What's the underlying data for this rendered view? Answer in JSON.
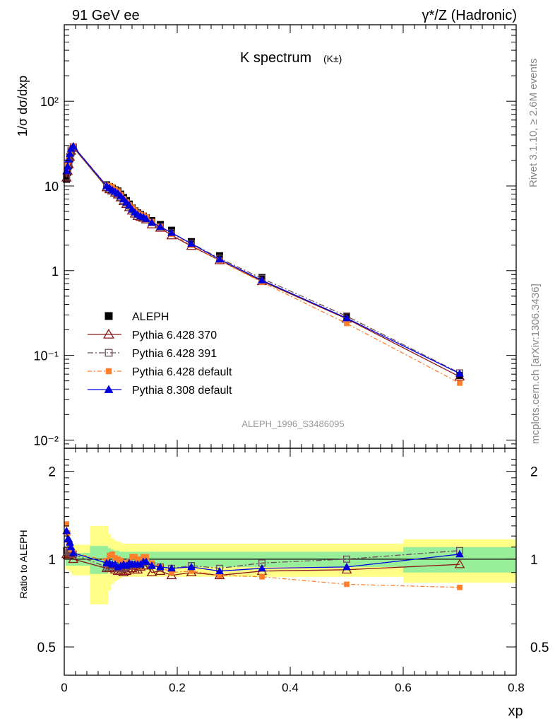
{
  "header": {
    "left": "91 GeV ee",
    "right": "γ*/Z (Hadronic)"
  },
  "side_text": {
    "rivet": "Rivet 3.1.10, ≥ 2.6M events",
    "mcplots": "mcplots.cern.ch [arXiv:1306.3436]"
  },
  "chart_data": [
    {
      "type": "line",
      "title": "K spectrum",
      "title_suffix": "(K±)",
      "analysis_label": "ALEPH_1996_S3486095",
      "ylabel": "1/σ dσ/dxp",
      "yscale": "log",
      "ylim": [
        0.008,
        800
      ],
      "xlim": [
        0,
        0.8
      ],
      "y_ticks": [
        "10⁻²",
        "10⁻¹",
        "1",
        "10",
        "10²"
      ],
      "legend_position": "lower-left",
      "x": [
        0.004,
        0.006,
        0.008,
        0.01,
        0.012,
        0.016,
        0.075,
        0.08,
        0.085,
        0.09,
        0.095,
        0.1,
        0.105,
        0.11,
        0.115,
        0.12,
        0.125,
        0.13,
        0.135,
        0.14,
        0.145,
        0.155,
        0.17,
        0.19,
        0.225,
        0.275,
        0.35,
        0.5,
        0.7
      ],
      "series": [
        {
          "name": "ALEPH",
          "color": "#000000",
          "marker": "filled-square",
          "values": [
            12.0,
            14.5,
            17.5,
            21.0,
            25.0,
            28.0,
            10.3,
            9.8,
            9.4,
            9.0,
            8.7,
            8.0,
            7.3,
            6.7,
            6.1,
            5.5,
            5.1,
            4.8,
            4.6,
            4.4,
            4.2,
            3.9,
            3.5,
            3.0,
            2.2,
            1.5,
            0.83,
            0.29,
            0.058
          ]
        },
        {
          "name": "Pythia 6.428 370",
          "color": "#8b1a1a",
          "marker": "open-triangle",
          "values": [
            12.5,
            15.0,
            18.0,
            22.0,
            26.0,
            28.5,
            9.6,
            9.1,
            8.8,
            8.3,
            7.9,
            7.3,
            6.6,
            6.1,
            5.6,
            5.1,
            4.7,
            4.4,
            4.3,
            4.2,
            4.0,
            3.5,
            3.2,
            2.6,
            1.95,
            1.32,
            0.75,
            0.27,
            0.056
          ]
        },
        {
          "name": "Pythia 6.428 391",
          "color": "#6e4d5a",
          "marker": "open-square",
          "values": [
            12.8,
            15.5,
            18.5,
            22.5,
            26.5,
            29.0,
            9.7,
            9.2,
            8.9,
            8.5,
            8.1,
            7.4,
            6.8,
            6.3,
            5.8,
            5.3,
            4.9,
            4.6,
            4.4,
            4.3,
            4.1,
            3.7,
            3.3,
            2.8,
            2.1,
            1.4,
            0.81,
            0.29,
            0.062
          ]
        },
        {
          "name": "Pythia 6.428 default",
          "color": "#ff7f2a",
          "marker": "filled-square-small",
          "values": [
            15.8,
            17.8,
            20.0,
            23.5,
            27.0,
            29.5,
            10.2,
            10.1,
            9.8,
            9.1,
            8.7,
            7.9,
            7.1,
            6.5,
            6.0,
            5.6,
            5.2,
            4.8,
            4.6,
            4.5,
            4.3,
            3.8,
            3.3,
            2.7,
            2.0,
            1.32,
            0.73,
            0.238,
            0.047
          ]
        },
        {
          "name": "Pythia 8.308 default",
          "color": "#0000dd",
          "marker": "filled-triangle",
          "values": [
            15.0,
            17.0,
            20.5,
            24.0,
            27.5,
            29.5,
            10.0,
            9.5,
            9.0,
            8.6,
            8.2,
            7.6,
            7.0,
            6.4,
            5.9,
            5.3,
            4.9,
            4.6,
            4.4,
            4.3,
            4.1,
            3.7,
            3.3,
            2.8,
            2.08,
            1.36,
            0.77,
            0.275,
            0.061
          ]
        }
      ]
    },
    {
      "type": "line",
      "ylabel": "Ratio to ALEPH",
      "xlabel": "xp",
      "yscale": "log",
      "ylim": [
        0.4,
        2.4
      ],
      "xlim": [
        0,
        0.8
      ],
      "x_ticks": [
        "0",
        "0.2",
        "0.4",
        "0.6",
        "0.8"
      ],
      "y_ticks": [
        "0.5",
        "1",
        "2"
      ],
      "band_colors": {
        "inner": "#99ee99",
        "outer": "#ffff88"
      },
      "band_inner_halfwidth": [
        0.05,
        0.05,
        0.05,
        0.05,
        0.05,
        0.05,
        0.11,
        0.09,
        0.08,
        0.07,
        0.07,
        0.06,
        0.06,
        0.06,
        0.06,
        0.06,
        0.06,
        0.06,
        0.06,
        0.06,
        0.06,
        0.06,
        0.06,
        0.06,
        0.06,
        0.06,
        0.06,
        0.06,
        0.1
      ],
      "band_outer_halfwidth": [
        0.08,
        0.08,
        0.08,
        0.09,
        0.1,
        0.12,
        0.3,
        0.22,
        0.18,
        0.16,
        0.15,
        0.14,
        0.13,
        0.13,
        0.13,
        0.13,
        0.13,
        0.13,
        0.13,
        0.13,
        0.13,
        0.13,
        0.13,
        0.13,
        0.13,
        0.13,
        0.13,
        0.13,
        0.17
      ],
      "x": [
        0.004,
        0.006,
        0.008,
        0.01,
        0.012,
        0.016,
        0.075,
        0.08,
        0.085,
        0.09,
        0.095,
        0.1,
        0.105,
        0.11,
        0.115,
        0.12,
        0.125,
        0.13,
        0.135,
        0.14,
        0.145,
        0.155,
        0.17,
        0.19,
        0.225,
        0.275,
        0.35,
        0.5,
        0.7
      ],
      "series": [
        {
          "name": "Pythia 6.428 370",
          "color": "#8b1a1a",
          "marker": "open-triangle",
          "values": [
            1.04,
            1.03,
            1.03,
            1.05,
            1.04,
            1.0,
            0.93,
            0.93,
            0.94,
            0.92,
            0.91,
            0.91,
            0.9,
            0.91,
            0.92,
            0.93,
            0.92,
            0.92,
            0.94,
            0.95,
            0.95,
            0.9,
            0.91,
            0.88,
            0.9,
            0.88,
            0.91,
            0.92,
            0.96
          ]
        },
        {
          "name": "Pythia 6.428 391",
          "color": "#6e4d5a",
          "marker": "open-square",
          "values": [
            1.07,
            1.07,
            1.06,
            1.07,
            1.06,
            1.04,
            0.94,
            0.94,
            0.95,
            0.95,
            0.93,
            0.93,
            0.93,
            0.94,
            0.95,
            0.96,
            0.96,
            0.96,
            0.96,
            0.98,
            0.98,
            0.95,
            0.94,
            0.93,
            0.95,
            0.93,
            0.97,
            1.0,
            1.07
          ]
        },
        {
          "name": "Pythia 6.428 default",
          "color": "#ff7f2a",
          "marker": "filled-square-small",
          "values": [
            1.32,
            1.23,
            1.14,
            1.12,
            1.08,
            1.05,
            0.99,
            1.03,
            1.04,
            1.01,
            1.0,
            0.99,
            0.97,
            0.97,
            0.98,
            1.02,
            1.02,
            1.0,
            1.0,
            1.02,
            1.02,
            0.97,
            0.94,
            0.9,
            0.91,
            0.88,
            0.87,
            0.82,
            0.8
          ]
        },
        {
          "name": "Pythia 8.308 default",
          "color": "#0000dd",
          "marker": "filled-triangle",
          "values": [
            1.25,
            1.17,
            1.17,
            1.14,
            1.1,
            1.05,
            0.97,
            0.97,
            0.96,
            0.96,
            0.94,
            0.95,
            0.96,
            0.95,
            0.97,
            0.96,
            0.96,
            0.96,
            0.96,
            0.98,
            0.98,
            0.95,
            0.94,
            0.93,
            0.94,
            0.91,
            0.93,
            0.94,
            1.04
          ]
        }
      ]
    }
  ]
}
